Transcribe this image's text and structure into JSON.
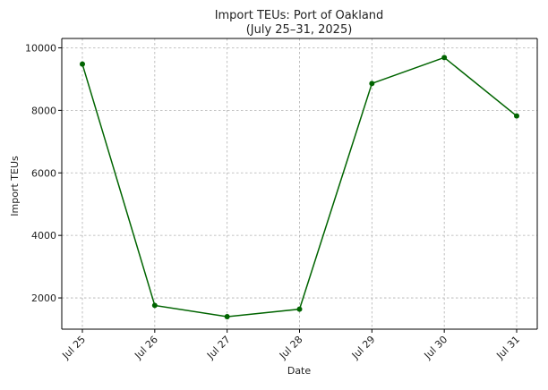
{
  "chart_data": {
    "type": "line",
    "title": "Import TEUs: Port of Oakland",
    "subtitle": "(July 25–31, 2025)",
    "xlabel": "Date",
    "ylabel": "Import TEUs",
    "categories": [
      "Jul 25",
      "Jul 26",
      "Jul 27",
      "Jul 28",
      "Jul 29",
      "Jul 30",
      "Jul 31"
    ],
    "series": [
      {
        "values": [
          9480,
          1760,
          1400,
          1640,
          8860,
          9690,
          7820
        ]
      }
    ],
    "y_ticks": [
      2000,
      4000,
      6000,
      8000,
      10000
    ],
    "ylim": [
      1000,
      10300
    ],
    "grid": true,
    "colors": {
      "line": "#006400",
      "marker": "#006400"
    }
  }
}
